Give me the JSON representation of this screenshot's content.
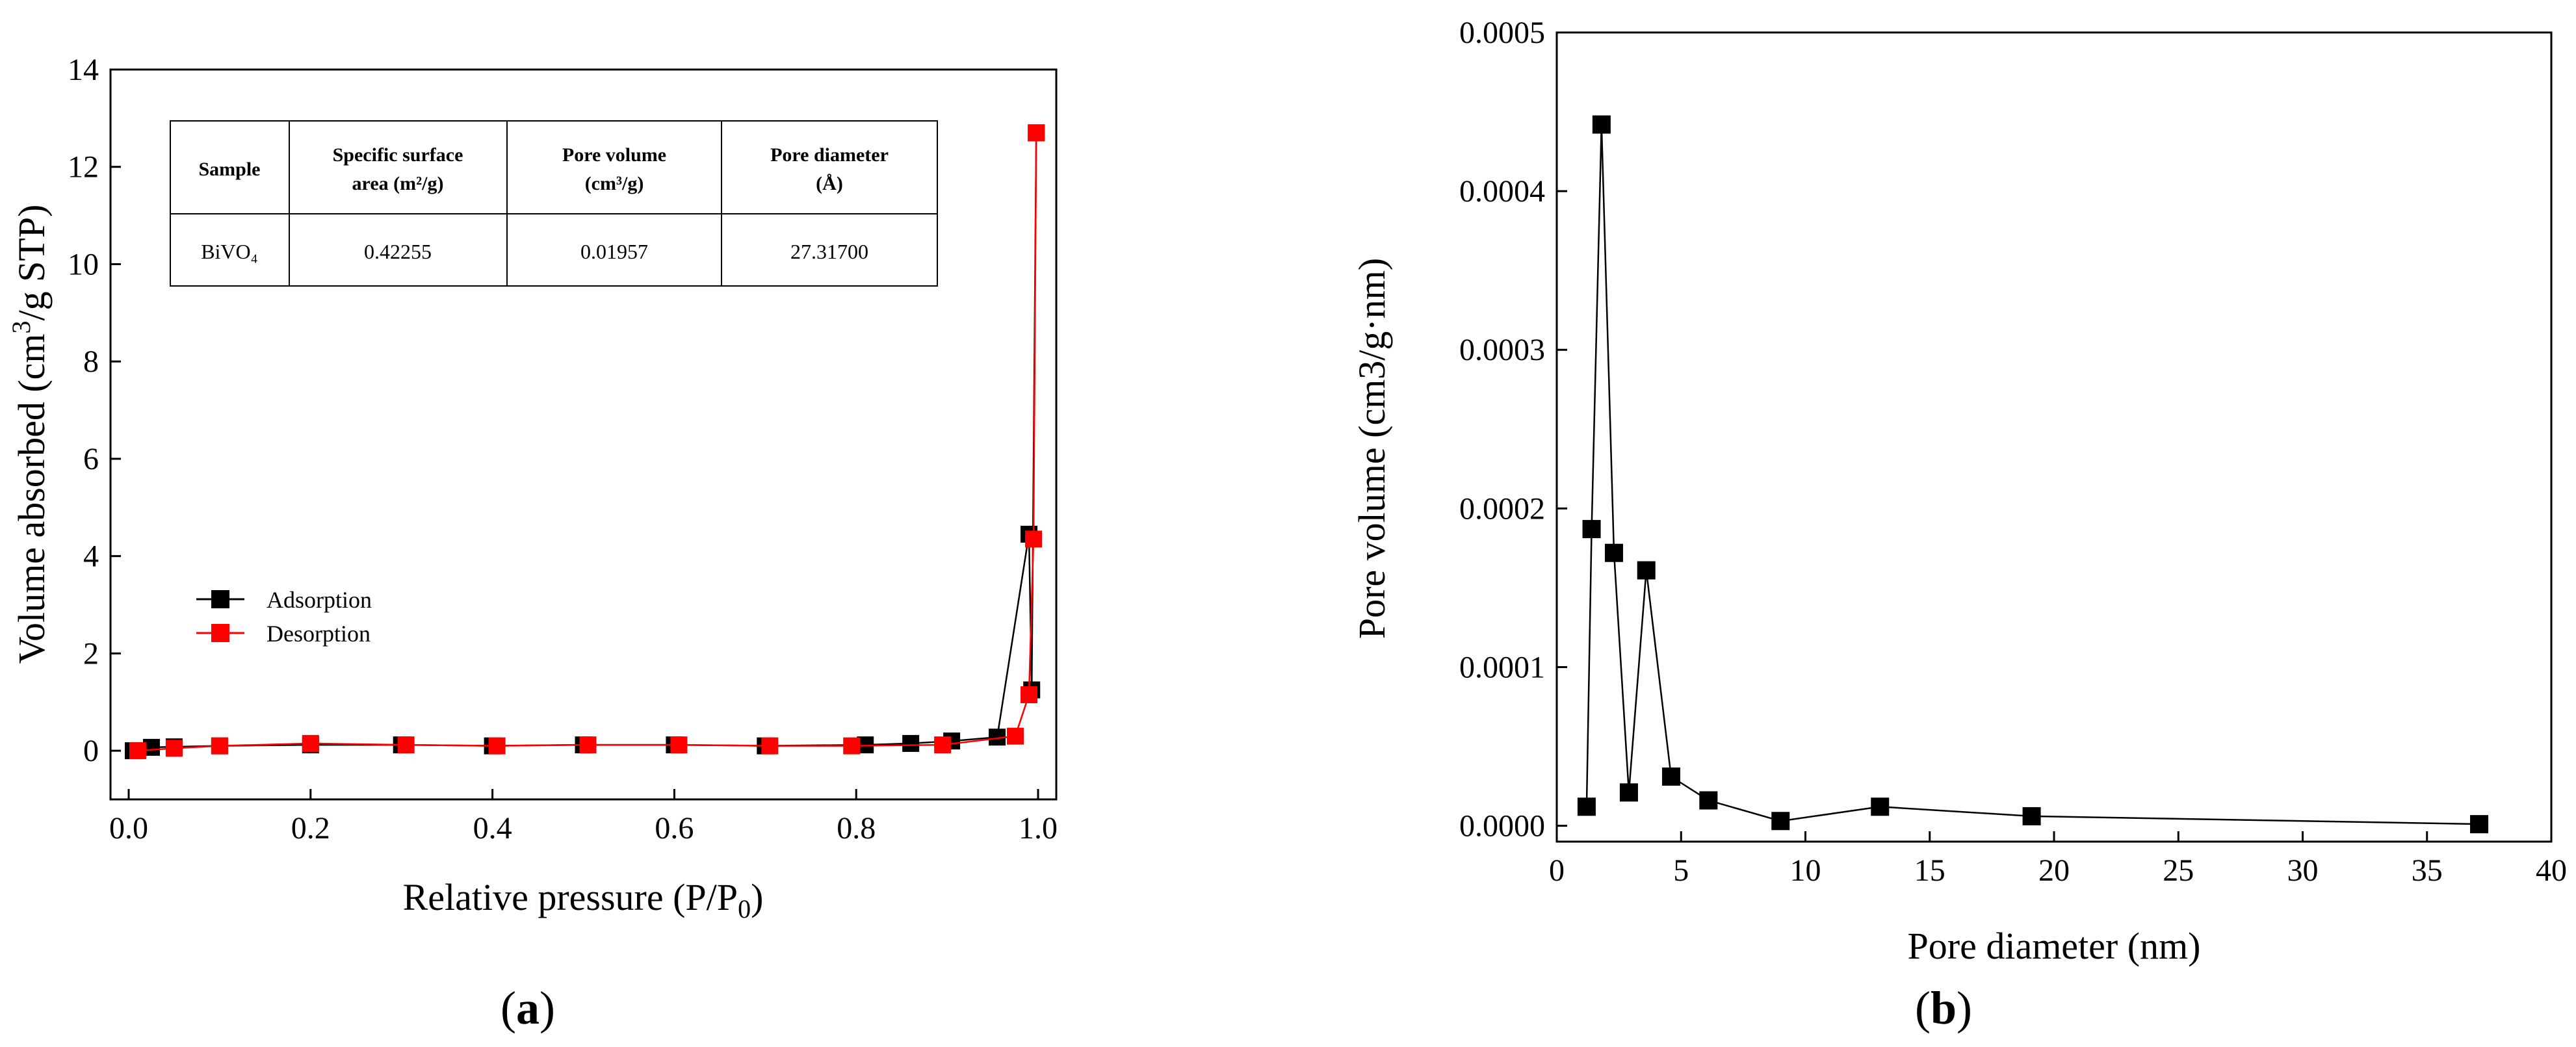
{
  "chart_data": [
    {
      "type": "scatter",
      "panel_label": "a",
      "xlabel": "Relative pressure (P/P₀)",
      "ylabel": "Volume absorbed (cm³/g STP)",
      "xlim": [
        -0.02,
        1.02
      ],
      "ylim": [
        -1,
        14
      ],
      "x_ticks": [
        "0.0",
        "0.2",
        "0.4",
        "0.6",
        "0.8",
        "1.0"
      ],
      "y_ticks": [
        "0",
        "2",
        "4",
        "6",
        "8",
        "10",
        "12",
        "14"
      ],
      "grid": false,
      "legend_position": "middle-left",
      "series": [
        {
          "name": "Adsorption",
          "color": "#000000",
          "marker": "square",
          "x": [
            0.005,
            0.025,
            0.05,
            0.1,
            0.2,
            0.3,
            0.4,
            0.5,
            0.6,
            0.7,
            0.81,
            0.86,
            0.905,
            0.955,
            0.99,
            0.993,
            0.998
          ],
          "y": [
            0.0,
            0.07,
            0.08,
            0.1,
            0.12,
            0.12,
            0.1,
            0.12,
            0.12,
            0.1,
            0.12,
            0.15,
            0.2,
            0.28,
            4.45,
            1.25,
            12.7
          ]
        },
        {
          "name": "Desorption",
          "color": "#ff0000",
          "marker": "square",
          "x": [
            0.998,
            0.995,
            0.99,
            0.975,
            0.895,
            0.795,
            0.705,
            0.605,
            0.505,
            0.405,
            0.305,
            0.2,
            0.1,
            0.05,
            0.01
          ],
          "y": [
            12.7,
            4.35,
            1.15,
            0.3,
            0.12,
            0.1,
            0.1,
            0.12,
            0.12,
            0.1,
            0.12,
            0.15,
            0.1,
            0.05,
            0.0
          ]
        }
      ],
      "table": {
        "headers": [
          "Sample",
          "Specific surface area (m²/g)",
          "Pore volume (cm³/g)",
          "Pore diameter (Å)"
        ],
        "header_lines": [
          [
            "Sample"
          ],
          [
            "Specific surface",
            "area (m²/g)"
          ],
          [
            "Pore volume",
            "(cm³/g)"
          ],
          [
            "Pore diameter",
            "(Å)"
          ]
        ],
        "rows": [
          [
            "BiVO₄",
            "0.42255",
            "0.01957",
            "27.31700"
          ]
        ]
      }
    },
    {
      "type": "scatter",
      "panel_label": "b",
      "xlabel": "Pore diameter (nm)",
      "ylabel": "Pore volume (cm3/g·nm)",
      "xlim": [
        0,
        40
      ],
      "ylim": [
        -1e-05,
        0.0005
      ],
      "x_ticks": [
        "0",
        "5",
        "10",
        "15",
        "20",
        "25",
        "30",
        "35",
        "40"
      ],
      "y_ticks": [
        "0.0000",
        "0.0001",
        "0.0002",
        "0.0003",
        "0.0004",
        "0.0005"
      ],
      "grid": false,
      "series": [
        {
          "color": "#000000",
          "marker": "square",
          "x": [
            1.2,
            1.4,
            1.8,
            2.3,
            2.9,
            3.6,
            4.6,
            6.1,
            9.0,
            13.0,
            19.1,
            37.1
          ],
          "y": [
            1.2e-05,
            0.000187,
            0.000442,
            0.000172,
            2.1e-05,
            0.000161,
            3.1e-05,
            1.6e-05,
            3e-06,
            1.2e-05,
            6e-06,
            1e-06
          ]
        }
      ]
    }
  ]
}
